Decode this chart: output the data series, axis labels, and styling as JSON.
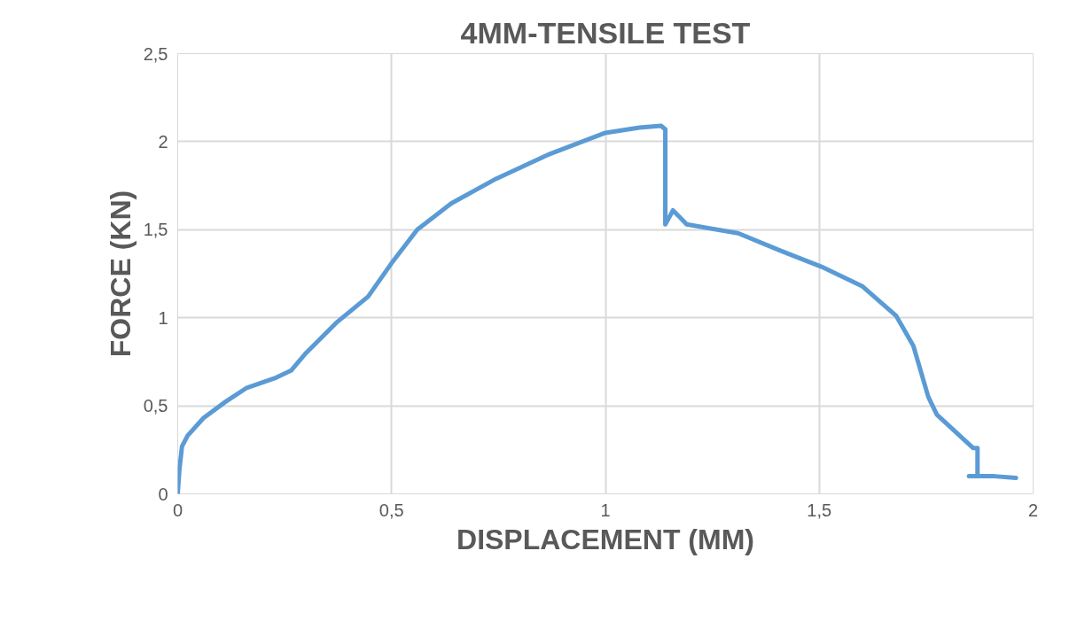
{
  "chart_data": {
    "type": "line",
    "title": "4MM-TENSILE TEST",
    "xlabel": "DISPLACEMENT (MM)",
    "ylabel": "FORCE (KN)",
    "xlim": [
      0,
      2
    ],
    "ylim": [
      0,
      2.5
    ],
    "xticks": [
      0,
      {
        "value": 0.5,
        "label": "0,5"
      },
      1,
      {
        "value": 1.5,
        "label": "1,5"
      },
      2
    ],
    "yticks": [
      0,
      {
        "value": 0.5,
        "label": "0,5"
      },
      1,
      {
        "value": 1.5,
        "label": "1,5"
      },
      2,
      {
        "value": 2.5,
        "label": "2,5"
      }
    ],
    "grid": true,
    "legend": false,
    "marker": "none",
    "line_style": "solid",
    "series": [
      {
        "color": "#5b9bd5",
        "x": [
          0,
          0.004,
          0.01,
          0.023,
          0.06,
          0.11,
          0.16,
          0.23,
          0.265,
          0.3,
          0.37,
          0.445,
          0.5,
          0.56,
          0.64,
          0.745,
          0.87,
          1.0,
          1.08,
          1.13,
          1.14,
          1.14,
          1.158,
          1.19,
          1.31,
          1.41,
          1.505,
          1.6,
          1.68,
          1.72,
          1.755,
          1.775,
          1.86,
          1.87,
          1.87,
          1.85,
          1.91,
          1.96
        ],
        "values": [
          0,
          0.14,
          0.27,
          0.33,
          0.43,
          0.52,
          0.6,
          0.66,
          0.7,
          0.8,
          0.97,
          1.12,
          1.31,
          1.5,
          1.65,
          1.79,
          1.93,
          2.05,
          2.08,
          2.09,
          2.07,
          1.53,
          1.61,
          1.53,
          1.48,
          1.38,
          1.29,
          1.18,
          1.01,
          0.84,
          0.55,
          0.45,
          0.26,
          0.26,
          0.1,
          0.1,
          0.1,
          0.09
        ]
      }
    ]
  }
}
